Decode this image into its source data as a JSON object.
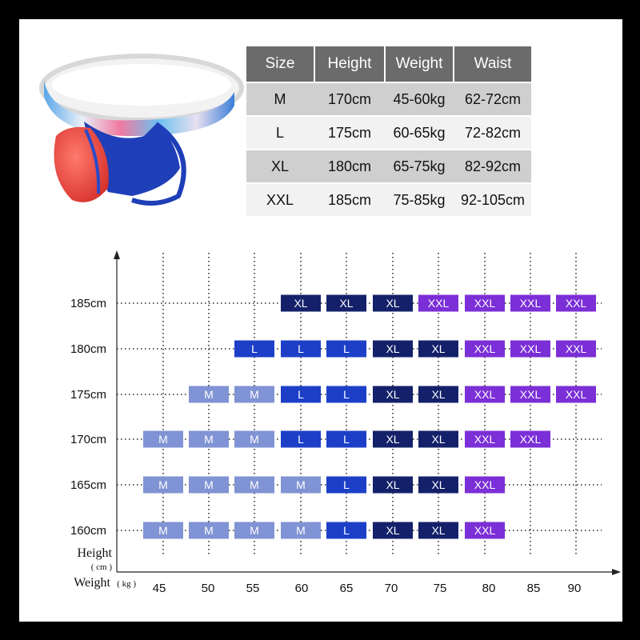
{
  "size_table": {
    "headers": [
      "Size",
      "Height",
      "Weight",
      "Waist"
    ],
    "rows": [
      [
        "M",
        "170cm",
        "45-60kg",
        "62-72cm"
      ],
      [
        "L",
        "175cm",
        "60-65kg",
        "72-82cm"
      ],
      [
        "XL",
        "180cm",
        "65-75kg",
        "82-92cm"
      ],
      [
        "XXL",
        "185cm",
        "75-85kg",
        "92-105cm"
      ]
    ]
  },
  "chart_data": {
    "type": "table",
    "y_axis": {
      "label": "Height",
      "unit": "( cm )"
    },
    "x_axis": {
      "label": "Weight",
      "unit": "( kg )"
    },
    "heights": [
      "185cm",
      "180cm",
      "175cm",
      "170cm",
      "165cm",
      "160cm"
    ],
    "weights": [
      "45",
      "50",
      "55",
      "60",
      "65",
      "70",
      "75",
      "80",
      "85",
      "90"
    ],
    "grid": [
      [
        "",
        "",
        "",
        "XL",
        "XL",
        "XL",
        "XXL",
        "XXL",
        "XXL",
        "XXL"
      ],
      [
        "",
        "",
        "L",
        "L",
        "L",
        "XL",
        "XL",
        "XXL",
        "XXL",
        "XXL"
      ],
      [
        "",
        "M",
        "M",
        "L",
        "L",
        "XL",
        "XL",
        "XXL",
        "XXL",
        "XXL"
      ],
      [
        "M",
        "M",
        "M",
        "L",
        "L",
        "XL",
        "XL",
        "XXL",
        "XXL",
        ""
      ],
      [
        "M",
        "M",
        "M",
        "M",
        "L",
        "XL",
        "XL",
        "XXL",
        "",
        ""
      ],
      [
        "M",
        "M",
        "M",
        "M",
        "L",
        "XL",
        "XL",
        "XXL",
        "",
        ""
      ]
    ],
    "colors": {
      "M": "#8093d4",
      "L": "#1d3fc8",
      "XL": "#14216a",
      "XXL": "#7b2fd6"
    }
  }
}
